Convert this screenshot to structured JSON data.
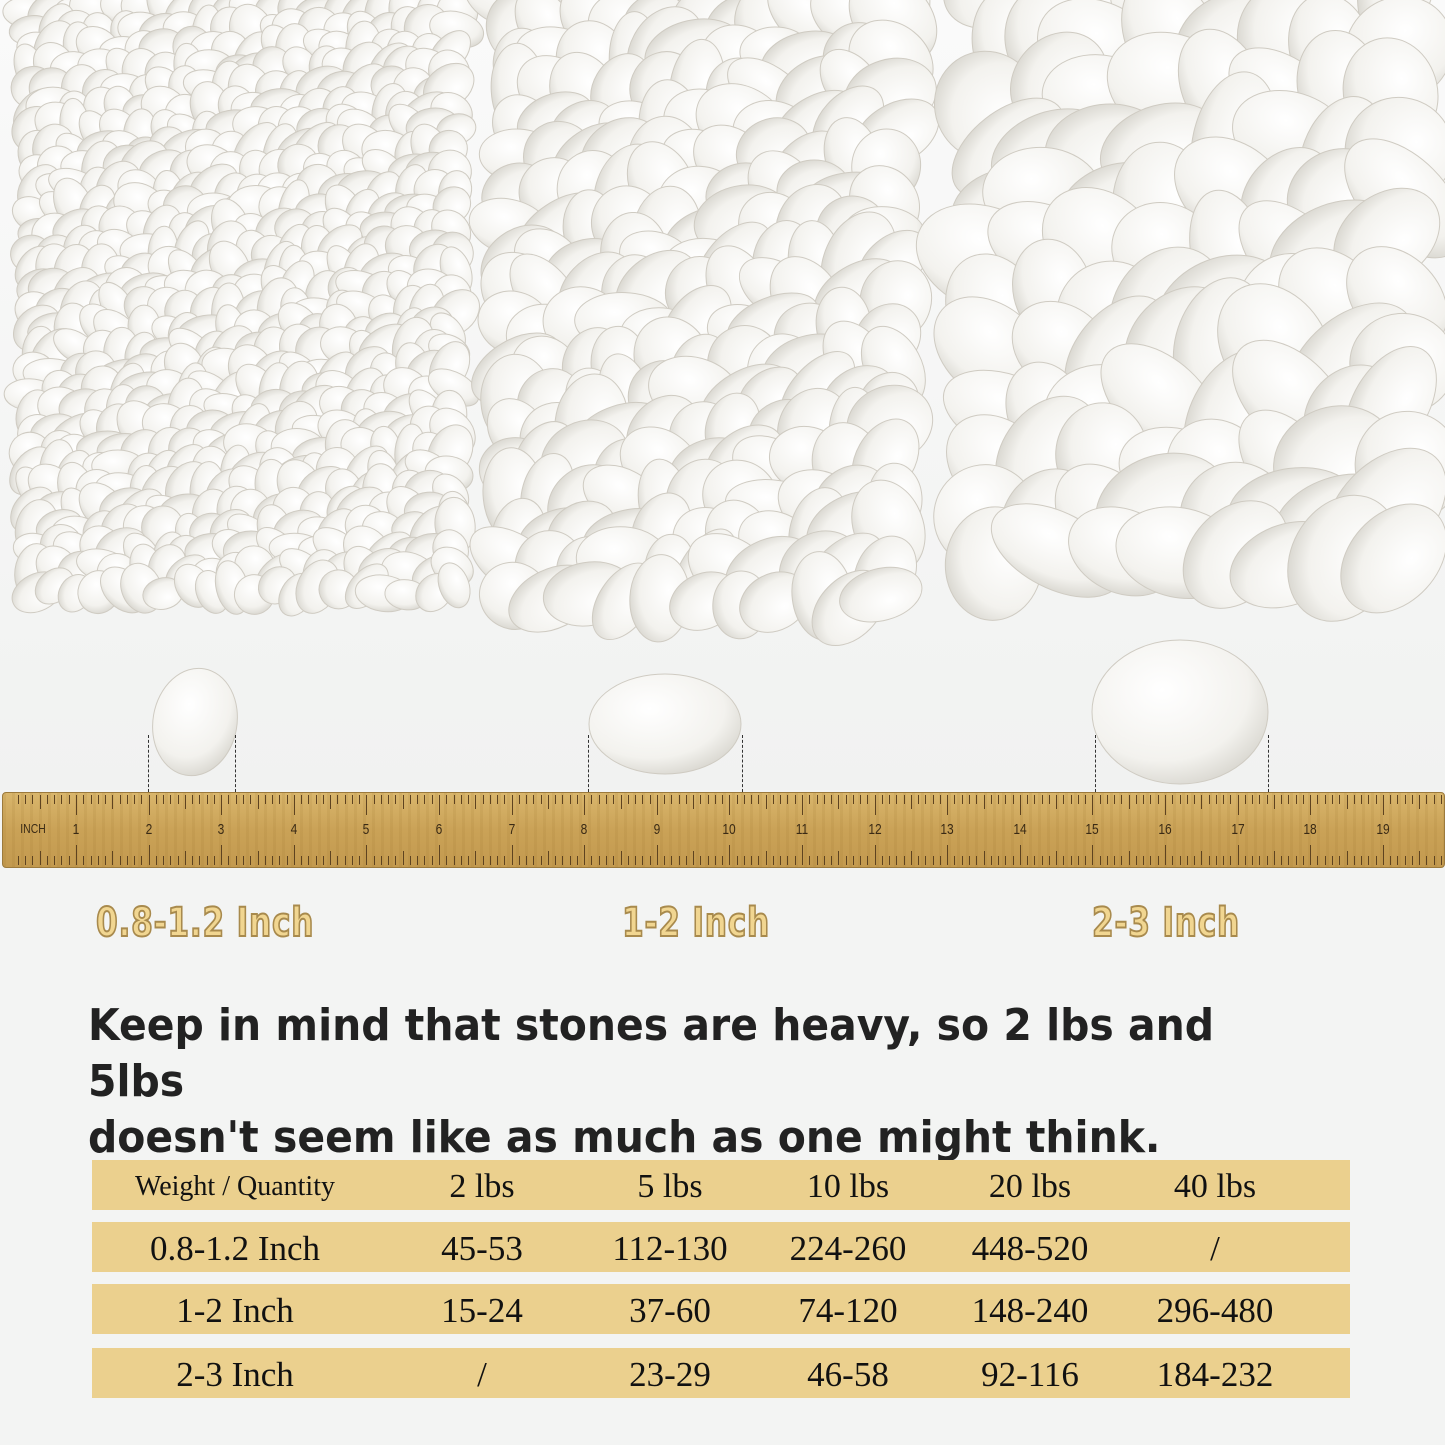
{
  "ruler": {
    "unit_label": "INCH",
    "numbers": [
      "1",
      "2",
      "3",
      "4",
      "5",
      "6",
      "7",
      "8",
      "9",
      "10",
      "11",
      "12",
      "13",
      "14",
      "15",
      "16",
      "17",
      "18",
      "19"
    ]
  },
  "sizes": [
    "0.8-1.2 Inch",
    "1-2 Inch",
    "2-3 Inch"
  ],
  "note": {
    "line1": "Keep in mind that stones are heavy, so 2 lbs and 5lbs",
    "line2": "doesn't seem like as much as one might think."
  },
  "table": {
    "header": [
      "Weight / Quantity",
      "2 lbs",
      "5 lbs",
      "10 lbs",
      "20 lbs",
      "40 lbs"
    ],
    "rows": [
      [
        "0.8-1.2 Inch",
        "45-53",
        "112-130",
        "224-260",
        "448-520",
        "/"
      ],
      [
        "1-2 Inch",
        "15-24",
        "37-60",
        "74-120",
        "148-240",
        "296-480"
      ],
      [
        "2-3 Inch",
        "/",
        "23-29",
        "46-58",
        "92-116",
        "184-232"
      ]
    ]
  },
  "colors": {
    "table_fill": "#ebd08e",
    "label_gold": "#f1d691",
    "ruler": "#caa257",
    "pebble": "#f7f6f2"
  }
}
